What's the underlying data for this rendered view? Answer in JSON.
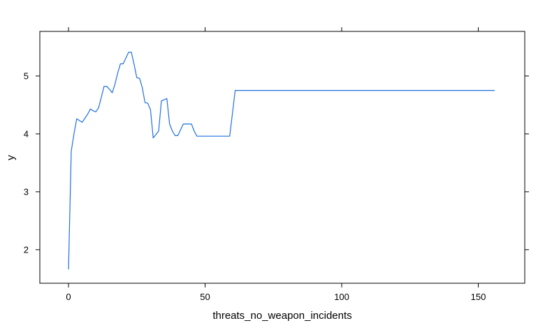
{
  "chart_data": {
    "type": "line",
    "title": "",
    "xlabel": "threats_no_weapon_incidents",
    "ylabel": "y",
    "xlim": [
      -10.5,
      167
    ],
    "ylim": [
      1.42,
      5.77
    ],
    "x_ticks": [
      0,
      50,
      100,
      150
    ],
    "y_ticks": [
      2,
      3,
      4,
      5
    ],
    "grid": false,
    "legend": "none",
    "line_color": "#1f6fe0",
    "series": [
      {
        "x": [
          0,
          1,
          2,
          3,
          4,
          5,
          6,
          7,
          8,
          9,
          10,
          11,
          12,
          13,
          14,
          15,
          16,
          17,
          18,
          19,
          20,
          21,
          22,
          23,
          24,
          25,
          26,
          27,
          28,
          29,
          30,
          31,
          32,
          33,
          34,
          35,
          36,
          37,
          38,
          39,
          40,
          41,
          42,
          43,
          44,
          45,
          46,
          47,
          48,
          49,
          50,
          51,
          52,
          53,
          54,
          55,
          56,
          57,
          58,
          59,
          60,
          61,
          65,
          70,
          80,
          90,
          100,
          110,
          120,
          130,
          140,
          150,
          156
        ],
        "y": [
          1.66,
          3.7,
          4.0,
          4.26,
          4.23,
          4.2,
          4.27,
          4.34,
          4.43,
          4.4,
          4.38,
          4.45,
          4.63,
          4.82,
          4.82,
          4.77,
          4.71,
          4.86,
          5.05,
          5.21,
          5.21,
          5.31,
          5.41,
          5.41,
          5.2,
          4.97,
          4.96,
          4.8,
          4.54,
          4.53,
          4.42,
          3.93,
          3.99,
          4.05,
          4.57,
          4.59,
          4.61,
          4.17,
          4.05,
          3.97,
          3.97,
          4.07,
          4.17,
          4.17,
          4.17,
          4.17,
          4.05,
          3.96,
          3.96,
          3.96,
          3.96,
          3.96,
          3.96,
          3.96,
          3.96,
          3.96,
          3.96,
          3.96,
          3.96,
          3.96,
          4.35,
          4.75,
          4.75,
          4.75,
          4.75,
          4.75,
          4.75,
          4.75,
          4.75,
          4.75,
          4.75,
          4.75,
          4.75
        ]
      }
    ]
  }
}
